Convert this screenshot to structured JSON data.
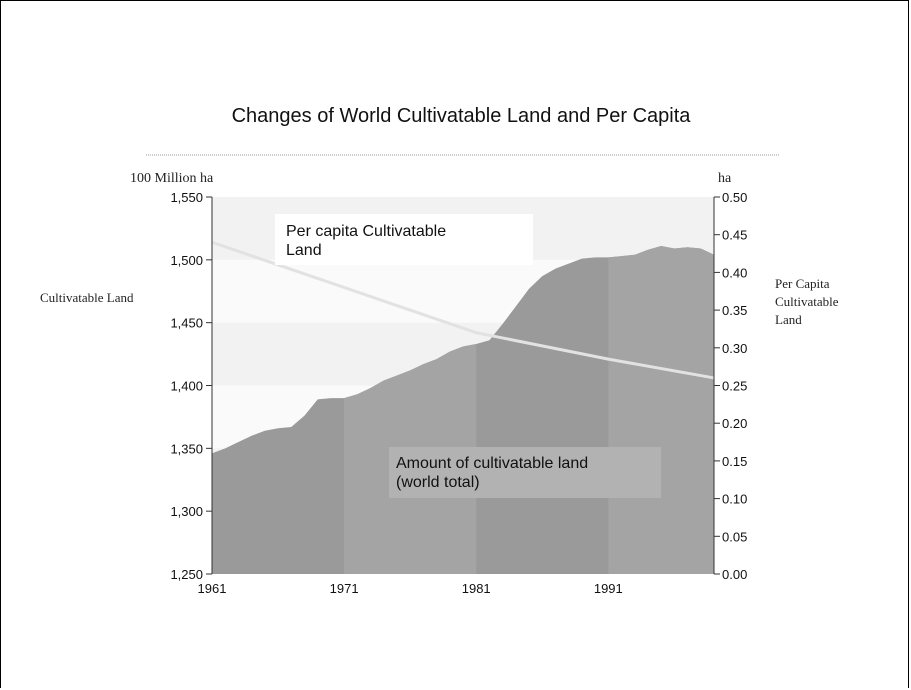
{
  "chart_data": {
    "type": "area",
    "title": "Changes of World Cultivatable Land and Per Capita",
    "left_unit": "100 Million ha",
    "right_unit": "ha",
    "left_axis_label": "Cultivatable Land",
    "right_axis_label_lines": [
      "Per Capita",
      "Cultivatable",
      "Land"
    ],
    "series": [
      {
        "name": "Amount of  cultivatable land (world total)",
        "axis": "left",
        "type": "area",
        "x": [
          1961,
          1962,
          1963,
          1964,
          1965,
          1966,
          1967,
          1968,
          1969,
          1970,
          1971,
          1972,
          1973,
          1974,
          1975,
          1976,
          1977,
          1978,
          1979,
          1980,
          1981,
          1982,
          1983,
          1984,
          1985,
          1986,
          1987,
          1988,
          1989,
          1990,
          1991,
          1992,
          1993,
          1994,
          1995,
          1996,
          1997,
          1998,
          1999
        ],
        "values": [
          1346,
          1350,
          1355,
          1360,
          1364,
          1366,
          1367,
          1376,
          1389,
          1390,
          1390,
          1393,
          1398,
          1404,
          1408,
          1412,
          1417,
          1421,
          1427,
          1431,
          1433,
          1436,
          1449,
          1463,
          1477,
          1487,
          1493,
          1497,
          1501,
          1502,
          1502,
          1503,
          1504,
          1508,
          1511,
          1509,
          1510,
          1509,
          1504
        ]
      },
      {
        "name": "Per capita Cultivatable Land",
        "axis": "right",
        "type": "line",
        "x": [
          1961,
          1971,
          1981,
          1991,
          1999
        ],
        "values": [
          0.44,
          0.38,
          0.32,
          0.285,
          0.26
        ]
      }
    ],
    "series_label_lines": {
      "area": [
        "Amount of  cultivatable land",
        "(world total)"
      ],
      "line": [
        "Per capita Cultivatable",
        "Land"
      ]
    },
    "x_ticks": [
      "1961",
      "1971",
      "1981",
      "1991"
    ],
    "x_tick_values": [
      1961,
      1971,
      1981,
      1991
    ],
    "xlim": [
      1961,
      1999
    ],
    "left_ticks": [
      "1,550",
      "1,500",
      "1,450",
      "1,400",
      "1,350",
      "1,300",
      "1,250"
    ],
    "left_tick_values": [
      1550,
      1500,
      1450,
      1400,
      1350,
      1300,
      1250
    ],
    "ylim_left": [
      1250,
      1550
    ],
    "right_ticks": [
      "0.50",
      "0.45",
      "0.40",
      "0.35",
      "0.30",
      "0.25",
      "0.20",
      "0.15",
      "0.10",
      "0.05",
      "0.00"
    ],
    "right_tick_values": [
      0.5,
      0.45,
      0.4,
      0.35,
      0.3,
      0.25,
      0.2,
      0.15,
      0.1,
      0.05,
      0
    ],
    "ylim_right": [
      0,
      0.5
    ],
    "colors": {
      "area_fill": "#9a9a9a",
      "area_band_light": "#a4a4a4",
      "line": "#e2e2e2",
      "plot_bg_a": "#f2f2f2",
      "plot_bg_b": "#fafafa",
      "axis": "#333333"
    }
  }
}
